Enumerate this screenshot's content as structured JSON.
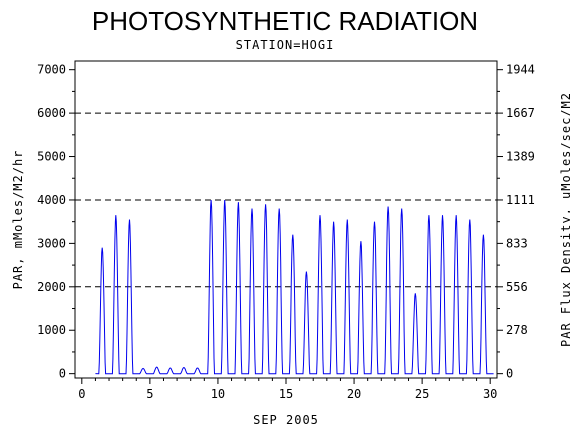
{
  "chart_data": {
    "type": "line",
    "title": "PHOTOSYNTHETIC RADIATION",
    "subtitle": "STATION=HOGI",
    "xlabel": "SEP 2005",
    "ylabel": "PAR, mMoles/M2/hr",
    "y2label": "PAR Flux Density, uMoles/sec/M2",
    "xlim": [
      -0.5,
      30.5
    ],
    "ylim": [
      -100,
      7200
    ],
    "x_ticks": [
      0,
      5,
      10,
      15,
      20,
      25,
      30
    ],
    "y_ticks": [
      0,
      1000,
      2000,
      3000,
      4000,
      5000,
      6000,
      7000
    ],
    "y2_ticks": [
      {
        "value": 0,
        "label": "0"
      },
      {
        "value": 1000,
        "label": "278"
      },
      {
        "value": 2000,
        "label": "556"
      },
      {
        "value": 3000,
        "label": "833"
      },
      {
        "value": 4000,
        "label": "1111"
      },
      {
        "value": 5000,
        "label": "1389"
      },
      {
        "value": 6000,
        "label": "1667"
      },
      {
        "value": 7000,
        "label": "1944"
      }
    ],
    "reference_lines": [
      2000,
      4000,
      6000
    ],
    "line_color": "#0000ee",
    "series": [
      {
        "daily_peaks": [
          {
            "day": 1,
            "peak": 2900
          },
          {
            "day": 2,
            "peak": 3650
          },
          {
            "day": 3,
            "peak": 3550
          },
          {
            "day": 4,
            "peak": 120
          },
          {
            "day": 5,
            "peak": 150
          },
          {
            "day": 6,
            "peak": 130
          },
          {
            "day": 7,
            "peak": 140
          },
          {
            "day": 8,
            "peak": 130
          },
          {
            "day": 9,
            "peak": 4000
          },
          {
            "day": 10,
            "peak": 4000
          },
          {
            "day": 11,
            "peak": 3950
          },
          {
            "day": 12,
            "peak": 3800
          },
          {
            "day": 13,
            "peak": 3900
          },
          {
            "day": 14,
            "peak": 3800
          },
          {
            "day": 15,
            "peak": 3200
          },
          {
            "day": 16,
            "peak": 2350
          },
          {
            "day": 17,
            "peak": 3650
          },
          {
            "day": 18,
            "peak": 3500
          },
          {
            "day": 19,
            "peak": 3550
          },
          {
            "day": 20,
            "peak": 3050
          },
          {
            "day": 21,
            "peak": 3500
          },
          {
            "day": 22,
            "peak": 3850
          },
          {
            "day": 23,
            "peak": 3800
          },
          {
            "day": 24,
            "peak": 1850
          },
          {
            "day": 25,
            "peak": 3650
          },
          {
            "day": 26,
            "peak": 3650
          },
          {
            "day": 27,
            "peak": 3650
          },
          {
            "day": 28,
            "peak": 3550
          },
          {
            "day": 29,
            "peak": 3200
          }
        ]
      }
    ]
  }
}
